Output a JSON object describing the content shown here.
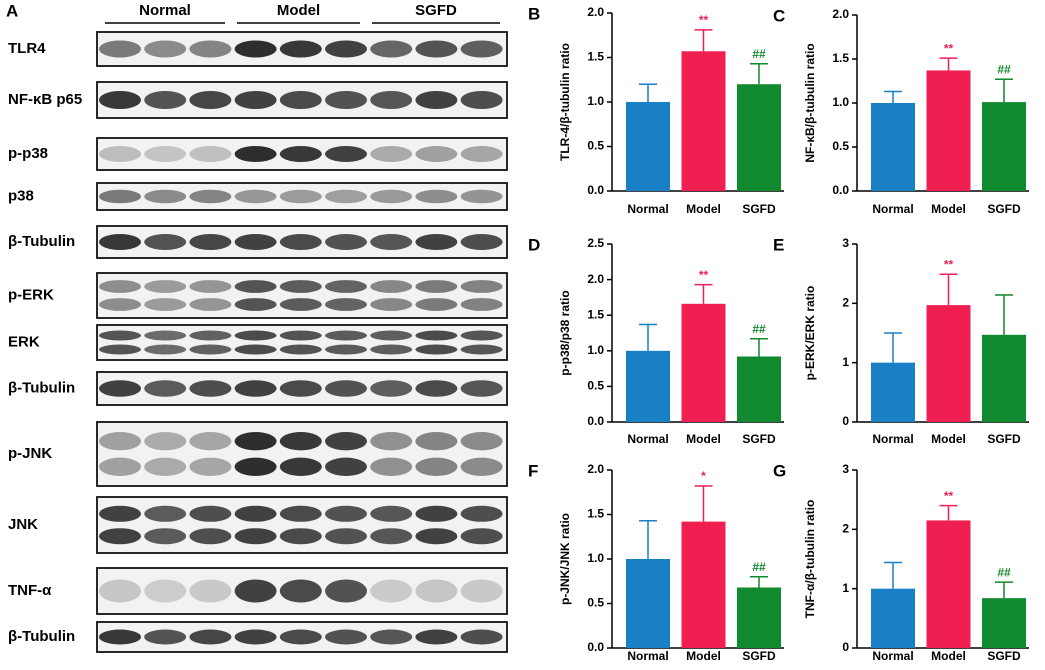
{
  "blot": {
    "panel": "A",
    "groups": [
      "Normal",
      "Model",
      "SGFD"
    ],
    "rows": [
      "TLR4",
      "NF-κB p65",
      "p-p38",
      "p38",
      "β-Tubulin",
      "p-ERK",
      "ERK",
      "β-Tubulin",
      "p-JNK",
      "JNK",
      "TNF-α",
      "β-Tubulin"
    ]
  },
  "chart_data": [
    {
      "type": "bar",
      "panel": "B",
      "y_label": "TLR-4/β-tubulin ratio",
      "categories": [
        "Normal",
        "Model",
        "SGFD"
      ],
      "values": [
        1.0,
        1.57,
        1.2
      ],
      "errors": [
        0.2,
        0.24,
        0.23
      ],
      "colors": [
        "#1a80c6",
        "#ef1f52",
        "#11892f"
      ],
      "annotations": [
        null,
        "**",
        "##"
      ],
      "ylim": [
        0,
        2
      ],
      "yticks": [
        {
          "value": 0,
          "label": "0.0"
        },
        0.5,
        {
          "value": 1,
          "label": "1.0"
        },
        1.5,
        {
          "value": 2,
          "label": "2.0"
        }
      ]
    },
    {
      "type": "bar",
      "panel": "C",
      "y_label": "NF-κB/β-tubulin ratio",
      "categories": [
        "Normal",
        "Model",
        "SGFD"
      ],
      "values": [
        1.0,
        1.37,
        1.01
      ],
      "errors": [
        0.13,
        0.14,
        0.26
      ],
      "colors": [
        "#1a80c6",
        "#ef1f52",
        "#11892f"
      ],
      "annotations": [
        null,
        "**",
        "##"
      ],
      "ylim": [
        0,
        2
      ],
      "yticks": [
        {
          "value": 0,
          "label": "0.0"
        },
        0.5,
        {
          "value": 1,
          "label": "1.0"
        },
        1.5,
        {
          "value": 2,
          "label": "2.0"
        }
      ]
    },
    {
      "type": "bar",
      "panel": "D",
      "y_label": "p-p38/p38 ratio",
      "categories": [
        "Normal",
        "Model",
        "SGFD"
      ],
      "values": [
        1.0,
        1.66,
        0.92
      ],
      "errors": [
        0.37,
        0.27,
        0.25
      ],
      "colors": [
        "#1a80c6",
        "#ef1f52",
        "#11892f"
      ],
      "annotations": [
        null,
        "**",
        "##"
      ],
      "ylim": [
        0,
        2.5
      ],
      "yticks": [
        {
          "value": 0,
          "label": "0.0"
        },
        0.5,
        {
          "value": 1,
          "label": "1.0"
        },
        1.5,
        {
          "value": 2,
          "label": "2.0"
        },
        2.5
      ]
    },
    {
      "type": "bar",
      "panel": "E",
      "y_label": "p-ERK/ERK ratio",
      "categories": [
        "Normal",
        "Model",
        "SGFD"
      ],
      "values": [
        1.0,
        1.97,
        1.47
      ],
      "errors": [
        0.5,
        0.52,
        0.67
      ],
      "colors": [
        "#1a80c6",
        "#ef1f52",
        "#11892f"
      ],
      "annotations": [
        null,
        "**",
        null
      ],
      "ylim": [
        0,
        3
      ],
      "yticks": [
        0,
        1,
        2,
        3
      ]
    },
    {
      "type": "bar",
      "panel": "F",
      "y_label": "p-JNK/JNK ratio",
      "categories": [
        "Normal",
        "Model",
        "SGFD"
      ],
      "values": [
        1.0,
        1.42,
        0.68
      ],
      "errors": [
        0.43,
        0.4,
        0.12
      ],
      "colors": [
        "#1a80c6",
        "#ef1f52",
        "#11892f"
      ],
      "annotations": [
        null,
        "*",
        "##"
      ],
      "ylim": [
        0,
        2
      ],
      "yticks": [
        {
          "value": 0,
          "label": "0.0"
        },
        0.5,
        {
          "value": 1,
          "label": "1.0"
        },
        1.5,
        {
          "value": 2,
          "label": "2.0"
        }
      ]
    },
    {
      "type": "bar",
      "panel": "G",
      "y_label": "TNF-α/β-tubulin ratio",
      "categories": [
        "Normal",
        "Model",
        "SGFD"
      ],
      "values": [
        1.0,
        2.15,
        0.84
      ],
      "errors": [
        0.44,
        0.25,
        0.27
      ],
      "colors": [
        "#1a80c6",
        "#ef1f52",
        "#11892f"
      ],
      "annotations": [
        null,
        "**",
        "##"
      ],
      "ylim": [
        0,
        3
      ],
      "yticks": [
        0,
        1,
        2,
        3
      ]
    }
  ]
}
